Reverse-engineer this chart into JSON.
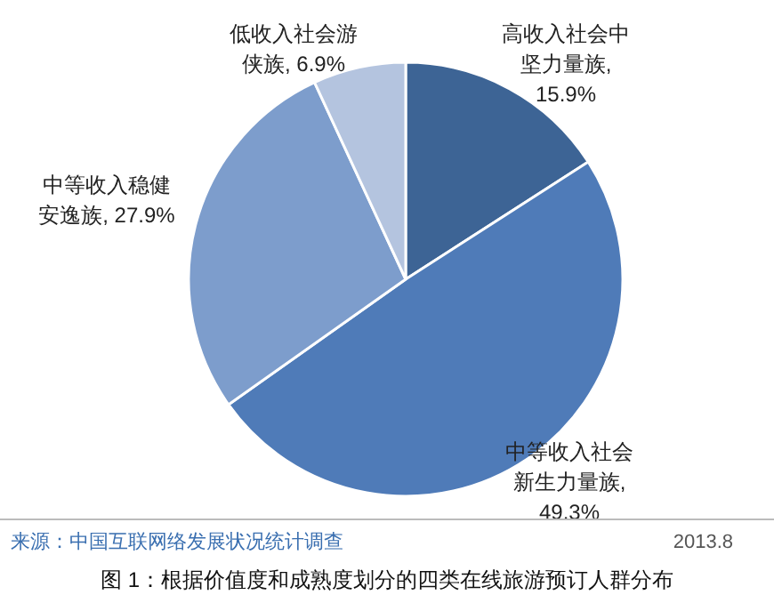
{
  "chart_data": {
    "type": "pie",
    "categories": [
      "高收入社会中坚力量族",
      "中等收入社会新生力量族",
      "中等收入稳健安逸族",
      "低收入社会游侠族"
    ],
    "values": [
      15.9,
      49.3,
      27.9,
      6.9
    ],
    "colors": [
      "#3d6495",
      "#4f7bb8",
      "#7d9dcc",
      "#b4c4df"
    ],
    "value_labels": [
      ", 15.9%",
      ", 49.3%",
      ", 27.9%",
      ", 6.9%"
    ],
    "annotations": [
      "来源：中国互联网络发展状况统计调查",
      "2013.8",
      "图 1：根据价值度和成熟度划分的四类在线旅游预订人群分布"
    ]
  }
}
